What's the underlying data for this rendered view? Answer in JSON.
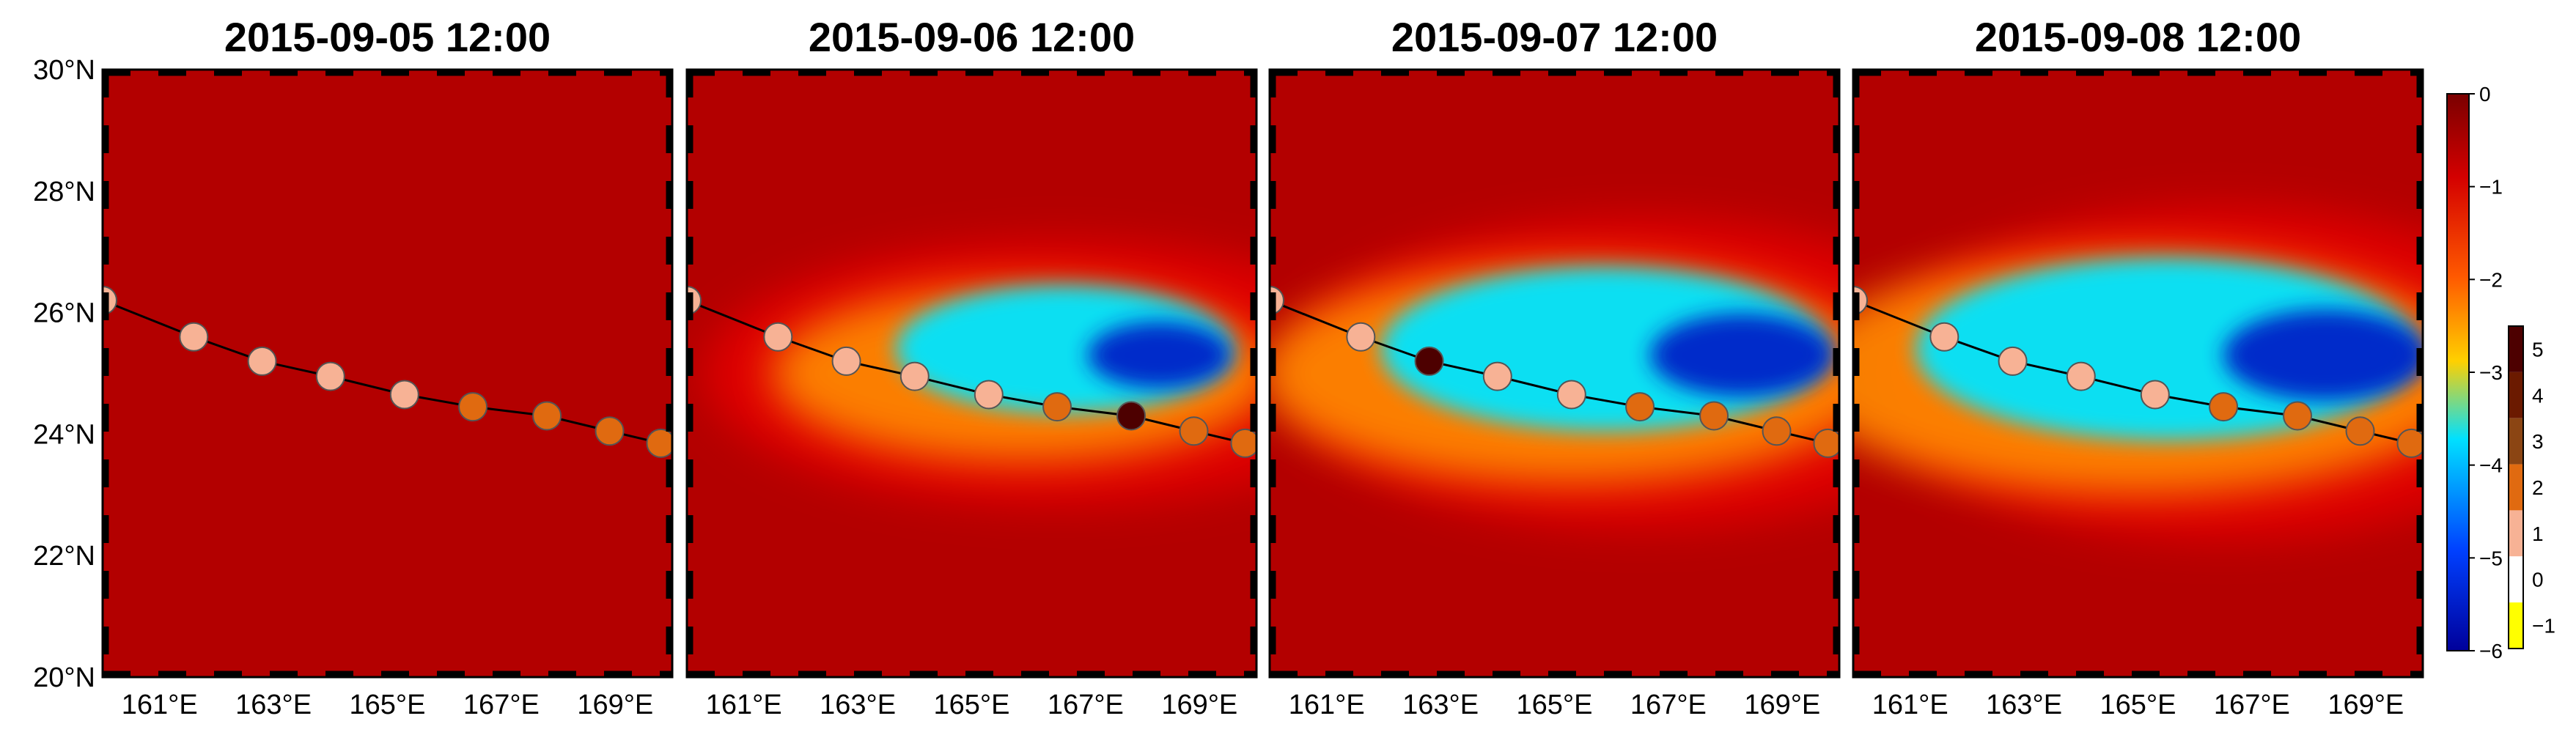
{
  "figure": {
    "panels": [
      {
        "title": "2015-09-05 12:00",
        "intensity": 0.05,
        "track_categories": [
          1,
          1,
          1,
          1,
          1,
          2,
          2,
          2,
          2
        ],
        "highlight_index": null
      },
      {
        "title": "2015-09-06 12:00",
        "intensity": 0.55,
        "track_categories": [
          1,
          1,
          1,
          1,
          1,
          2,
          5,
          2,
          2
        ],
        "highlight_index": 6
      },
      {
        "title": "2015-09-07 12:00",
        "intensity": 0.85,
        "track_categories": [
          1,
          1,
          5,
          1,
          1,
          2,
          2,
          2,
          2
        ],
        "highlight_index": 2
      },
      {
        "title": "2015-09-08 12:00",
        "intensity": 1.0,
        "track_categories": [
          1,
          1,
          1,
          1,
          1,
          2,
          2,
          2,
          2
        ],
        "highlight_index": null
      }
    ],
    "track_points": [
      {
        "lon": 160.0,
        "lat": 26.2
      },
      {
        "lon": 161.6,
        "lat": 25.6
      },
      {
        "lon": 162.8,
        "lat": 25.2
      },
      {
        "lon": 164.0,
        "lat": 24.95
      },
      {
        "lon": 165.3,
        "lat": 24.65
      },
      {
        "lon": 166.5,
        "lat": 24.45
      },
      {
        "lon": 167.8,
        "lat": 24.3
      },
      {
        "lon": 168.9,
        "lat": 24.05
      },
      {
        "lon": 169.8,
        "lat": 23.85
      }
    ],
    "x_ticks": [
      "161°E",
      "163°E",
      "165°E",
      "167°E",
      "169°E"
    ],
    "x_tick_values": [
      161,
      163,
      165,
      167,
      169
    ],
    "y_ticks": [
      "30°N",
      "28°N",
      "26°N",
      "24°N",
      "22°N",
      "20°N"
    ],
    "y_tick_values": [
      30,
      28,
      26,
      24,
      22,
      20
    ],
    "lon_range": [
      160,
      170
    ],
    "lat_range": [
      20,
      30
    ],
    "sst_colorbar": {
      "ticks": [
        "0",
        "−1",
        "−2",
        "−3",
        "−4",
        "−5",
        "−6"
      ],
      "values": [
        0,
        -1,
        -2,
        -3,
        -4,
        -5,
        -6
      ],
      "colors": [
        "#7a0000",
        "#d40000",
        "#ff5a00",
        "#ffc800",
        "#00d8ff",
        "#0040ff",
        "#00009a"
      ]
    },
    "category_colorbar": {
      "ticks": [
        "5",
        "4",
        "3",
        "2",
        "1",
        "0",
        "−1"
      ],
      "colors": {
        "5": "#4d0000",
        "4": "#6b1a00",
        "3": "#8b4513",
        "2": "#e06a10",
        "1": "#f7b295",
        "0": "#ffffff",
        "-1": "#ffff00"
      }
    },
    "map_colors": {
      "background": "#b30000",
      "warm": "#e60000",
      "mid": "#ff8c00",
      "cool": "#00e5ff",
      "cold": "#0022c8"
    }
  }
}
